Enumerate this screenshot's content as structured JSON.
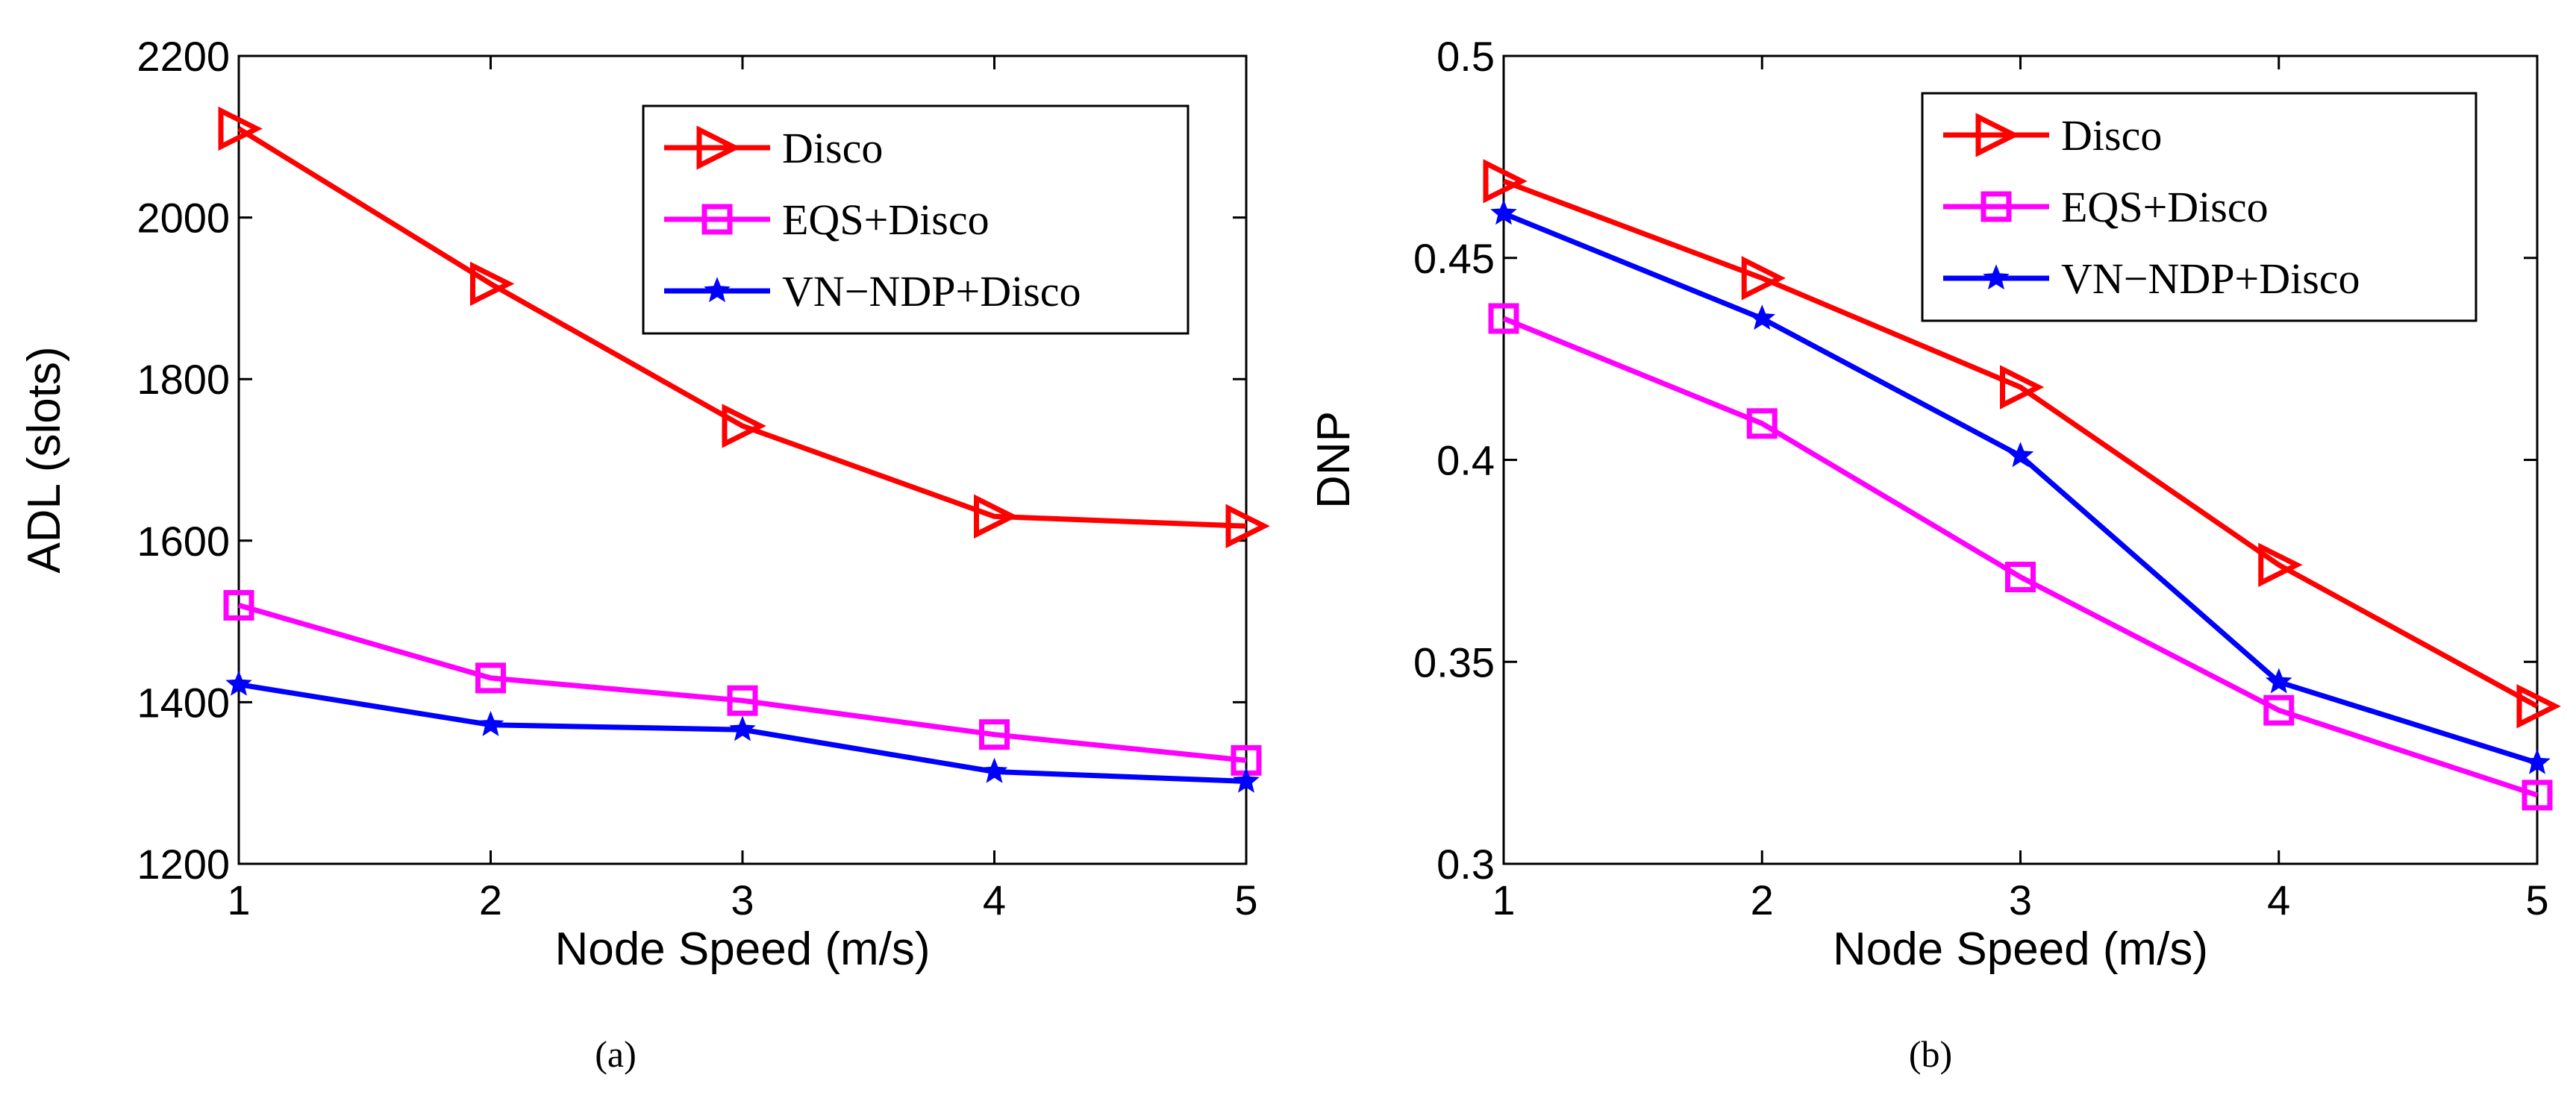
{
  "chart_data": [
    {
      "type": "line",
      "caption": "(a)",
      "xlabel": "Node Speed (m/s)",
      "ylabel": "ADL (slots)",
      "x": [
        1,
        2,
        3,
        4,
        5
      ],
      "xlim": [
        1,
        5
      ],
      "ylim": [
        1200,
        2200
      ],
      "xticks": [
        "1",
        "2",
        "3",
        "4",
        "5"
      ],
      "yticks": [
        "1200",
        "1400",
        "1600",
        "1800",
        "2000",
        "2200"
      ],
      "grid": false,
      "legend_position": "top-right",
      "series": [
        {
          "name": "Disco",
          "color": "#ff0000",
          "marker": "triangle-right",
          "values": [
            2110,
            1918,
            1742,
            1630,
            1618
          ]
        },
        {
          "name": "EQS+Disco",
          "color": "#ff00ff",
          "marker": "square",
          "values": [
            1520,
            1430,
            1402,
            1360,
            1328
          ]
        },
        {
          "name": "VN−NDP+Disco",
          "color": "#0000ff",
          "marker": "star",
          "values": [
            1422,
            1372,
            1366,
            1314,
            1302
          ]
        }
      ]
    },
    {
      "type": "line",
      "caption": "(b)",
      "xlabel": "Node Speed (m/s)",
      "ylabel": "DNP",
      "x": [
        1,
        2,
        3,
        4,
        5
      ],
      "xlim": [
        1,
        5
      ],
      "ylim": [
        0.3,
        0.5
      ],
      "xticks": [
        "1",
        "2",
        "3",
        "4",
        "5"
      ],
      "yticks": [
        "0.3",
        "0.35",
        "0.4",
        "0.45",
        "0.5"
      ],
      "grid": false,
      "legend_position": "top-right",
      "series": [
        {
          "name": "Disco",
          "color": "#ff0000",
          "marker": "triangle-right",
          "values": [
            0.469,
            0.445,
            0.418,
            0.374,
            0.339
          ]
        },
        {
          "name": "EQS+Disco",
          "color": "#ff00ff",
          "marker": "square",
          "values": [
            0.435,
            0.409,
            0.371,
            0.338,
            0.317
          ]
        },
        {
          "name": "VN−NDP+Disco",
          "color": "#0000ff",
          "marker": "star",
          "values": [
            0.461,
            0.435,
            0.401,
            0.345,
            0.325
          ]
        }
      ]
    }
  ]
}
